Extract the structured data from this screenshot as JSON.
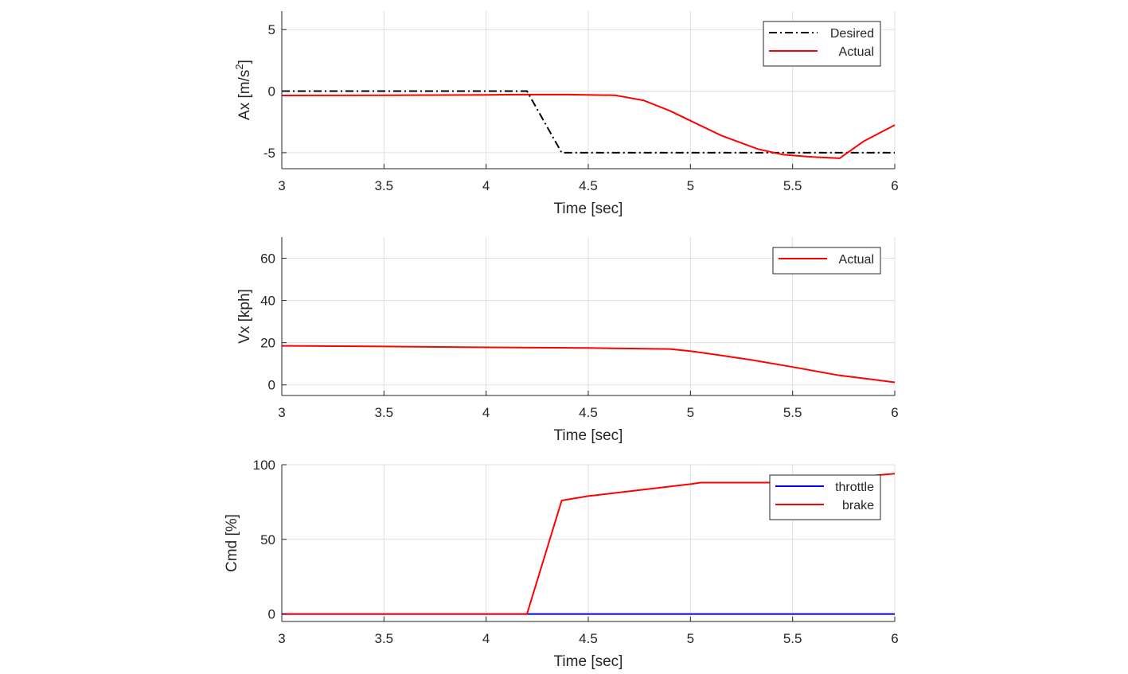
{
  "chart_data": [
    {
      "type": "line",
      "xlabel": "Time [sec]",
      "ylabel": "Ax [m/s^2]",
      "ylabel_main": "Ax [m/s",
      "ylabel_sup": "2",
      "ylabel_close": "]",
      "xlim": [
        3,
        6
      ],
      "ylim": [
        -6.3,
        6.5
      ],
      "xticks": [
        "3",
        "3.5",
        "4",
        "4.5",
        "5",
        "5.5",
        "6"
      ],
      "yticks": [
        "-5",
        "0",
        "5"
      ],
      "grid": true,
      "legend_position": "top-right",
      "series": [
        {
          "name": "Desired",
          "color": "#000000",
          "style": "dashdot",
          "x": [
            3.0,
            4.2,
            4.37,
            6.0
          ],
          "y": [
            0.0,
            0.0,
            -5.0,
            -5.0
          ]
        },
        {
          "name": "Actual",
          "color": "#ff0000",
          "style": "solid",
          "x": [
            3.0,
            3.5,
            4.0,
            4.2,
            4.4,
            4.63,
            4.77,
            4.9,
            5.0,
            5.15,
            5.33,
            5.45,
            5.6,
            5.73,
            5.85,
            6.0
          ],
          "y": [
            -0.35,
            -0.33,
            -0.3,
            -0.28,
            -0.28,
            -0.33,
            -0.75,
            -1.6,
            -2.4,
            -3.6,
            -4.7,
            -5.15,
            -5.35,
            -5.45,
            -4.05,
            -2.75
          ]
        }
      ]
    },
    {
      "type": "line",
      "xlabel": "Time [sec]",
      "ylabel": "Vx [kph]",
      "xlim": [
        3,
        6
      ],
      "ylim": [
        -5,
        70
      ],
      "xticks": [
        "3",
        "3.5",
        "4",
        "4.5",
        "5",
        "5.5",
        "6"
      ],
      "yticks": [
        "0",
        "20",
        "40",
        "60"
      ],
      "grid": true,
      "legend_position": "top-right",
      "series": [
        {
          "name": "Actual",
          "color": "#ff0000",
          "style": "solid",
          "x": [
            3.0,
            3.5,
            4.0,
            4.5,
            4.9,
            5.0,
            5.15,
            5.3,
            5.5,
            5.73,
            5.9,
            6.0
          ],
          "y": [
            18.5,
            18.2,
            17.8,
            17.5,
            17.0,
            16.0,
            14.0,
            11.8,
            8.5,
            4.5,
            2.5,
            1.2
          ]
        }
      ]
    },
    {
      "type": "line",
      "xlabel": "Time [sec]",
      "ylabel": "Cmd [%]",
      "xlim": [
        3,
        6
      ],
      "ylim": [
        -5,
        100
      ],
      "xticks": [
        "3",
        "3.5",
        "4",
        "4.5",
        "5",
        "5.5",
        "6"
      ],
      "yticks": [
        "0",
        "50",
        "100"
      ],
      "grid": true,
      "legend_position": "top-right",
      "series": [
        {
          "name": "throttle",
          "color": "#0000ff",
          "style": "solid",
          "x": [
            3.0,
            6.0
          ],
          "y": [
            0,
            0
          ]
        },
        {
          "name": "brake",
          "color": "#ff0000",
          "style": "solid",
          "x": [
            3.0,
            4.2,
            4.37,
            4.5,
            4.75,
            5.0,
            5.05,
            5.33,
            5.5,
            6.0
          ],
          "y": [
            0,
            0,
            76,
            79,
            83,
            87,
            88,
            88,
            88,
            94
          ]
        }
      ]
    }
  ]
}
